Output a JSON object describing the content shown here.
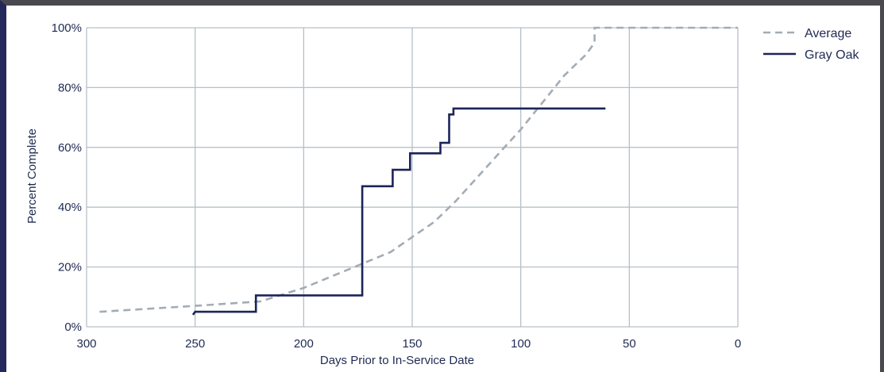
{
  "chart_data": {
    "type": "line",
    "xlabel": "Days Prior to In-Service Date",
    "ylabel": "Percent Complete",
    "xlim": [
      300,
      0
    ],
    "ylim": [
      0,
      100
    ],
    "x_reversed": true,
    "grid": true,
    "legend_position": "top-right",
    "x_ticks": [
      300,
      250,
      200,
      150,
      100,
      50,
      0
    ],
    "x_tick_labels": [
      "300",
      "250",
      "200",
      "150",
      "100",
      "50",
      "0"
    ],
    "y_ticks": [
      0,
      20,
      40,
      60,
      80,
      100
    ],
    "y_tick_labels": [
      "0%",
      "20%",
      "40%",
      "60%",
      "80%",
      "100%"
    ],
    "colors": {
      "grid": "#b6c0c8",
      "average": "#a3acb4",
      "gray_oak": "#1c2459"
    },
    "series": [
      {
        "name": "Average",
        "style": "dashed",
        "color": "#a3acb4",
        "points": [
          [
            294,
            5
          ],
          [
            250,
            7
          ],
          [
            220,
            8.5
          ],
          [
            200,
            13
          ],
          [
            180,
            19
          ],
          [
            170,
            22
          ],
          [
            160,
            25
          ],
          [
            150,
            30
          ],
          [
            140,
            35
          ],
          [
            130,
            42
          ],
          [
            120,
            50
          ],
          [
            110,
            58
          ],
          [
            100,
            66
          ],
          [
            90,
            75
          ],
          [
            80,
            84
          ],
          [
            70,
            91
          ],
          [
            66,
            95
          ],
          [
            66,
            100
          ],
          [
            0,
            100
          ]
        ]
      },
      {
        "name": "Gray Oak",
        "style": "solid",
        "color": "#1c2459",
        "step": true,
        "points": [
          [
            251,
            4
          ],
          [
            250,
            5
          ],
          [
            222,
            5
          ],
          [
            222,
            10.5
          ],
          [
            173,
            10.5
          ],
          [
            173,
            47
          ],
          [
            164,
            47
          ],
          [
            159,
            47
          ],
          [
            159,
            52.5
          ],
          [
            151,
            52.5
          ],
          [
            151,
            58
          ],
          [
            137,
            58
          ],
          [
            137,
            61.5
          ],
          [
            133,
            61.5
          ],
          [
            133,
            71
          ],
          [
            131,
            71
          ],
          [
            131,
            73
          ],
          [
            61,
            73
          ]
        ]
      }
    ]
  }
}
